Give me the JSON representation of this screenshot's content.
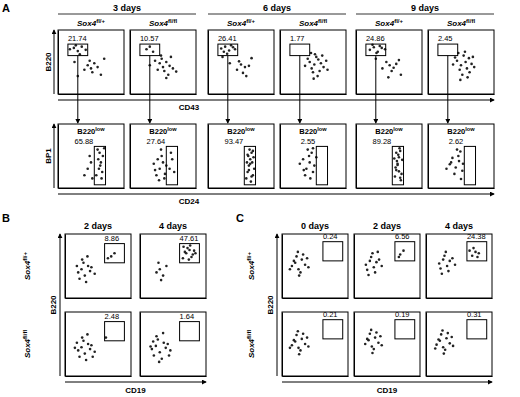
{
  "sections": [
    {
      "letter": "A",
      "headers": [
        "3 days",
        "6 days",
        "9 days"
      ],
      "column_labels": [
        "Sox4fl/+",
        "Sox4fl/fl",
        "Sox4fl/+",
        "Sox4fl/fl",
        "Sox4fl/+",
        "Sox4fl/fl"
      ],
      "y_labels": [
        "B220",
        "BP1"
      ],
      "x_labels": [
        "CD43",
        "CD24"
      ]
    },
    {
      "letter": "B",
      "headers": [
        "2 days",
        "4 days"
      ],
      "row_labels": [
        "Sox4fl/+",
        "Sox4fl/fl"
      ],
      "y_label": "B220",
      "x_label": "CD19"
    },
    {
      "letter": "C",
      "headers": [
        "0 days",
        "2 days",
        "4 days"
      ],
      "row_labels": [
        "Sox4fl/+",
        "Sox4fl/fl"
      ],
      "y_label": "B220",
      "x_label": "CD19"
    }
  ],
  "chart_data": [
    {
      "type": "scatter",
      "xlim": [
        0,
        100
      ],
      "ylim": [
        0,
        100
      ],
      "tick_labels": false,
      "color": "#222222",
      "marker": "dot",
      "x": [
        18,
        24,
        30,
        36,
        27,
        42,
        33,
        45,
        50,
        55,
        48,
        60,
        40,
        52,
        30,
        65,
        70,
        25
      ],
      "y": [
        70,
        72,
        67,
        74,
        76,
        69,
        62,
        45,
        40,
        48,
        52,
        42,
        38,
        34,
        28,
        30,
        55,
        50
      ],
      "gate": {
        "x": [
          15,
          45
        ],
        "y": [
          60,
          78
        ],
        "value": 21.74
      }
    },
    {
      "type": "scatter",
      "xlim": [
        0,
        100
      ],
      "ylim": [
        0,
        100
      ],
      "tick_labels": false,
      "color": "#222222",
      "marker": "dot",
      "x": [
        25,
        35,
        30,
        45,
        50,
        55,
        48,
        60,
        42,
        52,
        58,
        65,
        38,
        70,
        62,
        30,
        47,
        55
      ],
      "y": [
        70,
        66,
        74,
        48,
        42,
        50,
        55,
        44,
        38,
        36,
        30,
        40,
        52,
        35,
        58,
        45,
        60,
        25
      ],
      "gate": {
        "x": [
          15,
          45
        ],
        "y": [
          60,
          78
        ],
        "value": 10.57
      }
    },
    {
      "type": "scatter",
      "xlim": [
        0,
        100
      ],
      "ylim": [
        0,
        100
      ],
      "tick_labels": false,
      "color": "#222222",
      "marker": "dot",
      "x": [
        20,
        26,
        32,
        38,
        24,
        35,
        29,
        41,
        50,
        56,
        47,
        62,
        44,
        53,
        66,
        33,
        58,
        22
      ],
      "y": [
        71,
        74,
        68,
        73,
        66,
        76,
        63,
        70,
        46,
        42,
        51,
        44,
        38,
        33,
        56,
        48,
        28,
        58
      ],
      "gate": {
        "x": [
          15,
          45
        ],
        "y": [
          60,
          78
        ],
        "value": 26.41
      }
    },
    {
      "type": "scatter",
      "xlim": [
        0,
        100
      ],
      "ylim": [
        0,
        100
      ],
      "tick_labels": false,
      "color": "#222222",
      "marker": "dot",
      "x": [
        45,
        52,
        58,
        48,
        62,
        55,
        50,
        66,
        42,
        60,
        70,
        53,
        57,
        47,
        64,
        38,
        72,
        51
      ],
      "y": [
        50,
        46,
        54,
        40,
        48,
        58,
        34,
        42,
        55,
        36,
        52,
        62,
        28,
        64,
        60,
        44,
        38,
        24
      ],
      "gate": {
        "x": [
          15,
          45
        ],
        "y": [
          60,
          78
        ],
        "value": 1.77
      }
    },
    {
      "type": "scatter",
      "xlim": [
        0,
        100
      ],
      "ylim": [
        0,
        100
      ],
      "tick_labels": false,
      "color": "#222222",
      "marker": "dot",
      "x": [
        21,
        27,
        33,
        39,
        25,
        31,
        36,
        44,
        51,
        57,
        46,
        61,
        54,
        65,
        40,
        30,
        68,
        49
      ],
      "y": [
        69,
        73,
        66,
        72,
        77,
        64,
        75,
        70,
        45,
        41,
        50,
        47,
        36,
        53,
        40,
        55,
        30,
        26
      ],
      "gate": {
        "x": [
          15,
          45
        ],
        "y": [
          60,
          78
        ],
        "value": 24.86
      }
    },
    {
      "type": "scatter",
      "xlim": [
        0,
        100
      ],
      "ylim": [
        0,
        100
      ],
      "tick_labels": false,
      "color": "#222222",
      "marker": "dot",
      "x": [
        44,
        50,
        57,
        62,
        48,
        54,
        66,
        59,
        41,
        70,
        52,
        46,
        63,
        56,
        68,
        38,
        60,
        49
      ],
      "y": [
        52,
        45,
        50,
        56,
        38,
        60,
        47,
        40,
        57,
        42,
        30,
        64,
        34,
        66,
        58,
        46,
        26,
        22
      ],
      "gate": {
        "x": [
          15,
          45
        ],
        "y": [
          60,
          78
        ],
        "value": 2.45
      }
    },
    {
      "type": "scatter",
      "xlim": [
        0,
        100
      ],
      "ylim": [
        0,
        100
      ],
      "tick_labels": false,
      "color": "#222222",
      "marker": "dot",
      "x": [
        58,
        62,
        65,
        68,
        60,
        64,
        67,
        61,
        63,
        66,
        45,
        50,
        40,
        48,
        52,
        70
      ],
      "y": [
        20,
        30,
        40,
        50,
        60,
        35,
        25,
        45,
        55,
        15,
        30,
        40,
        20,
        50,
        15,
        62
      ],
      "gate": {
        "x": [
          55,
          72
        ],
        "y": [
          5,
          65
        ],
        "value": 65.88
      },
      "annotation": "B220low"
    },
    {
      "type": "scatter",
      "xlim": [
        0,
        100
      ],
      "ylim": [
        0,
        100
      ],
      "tick_labels": false,
      "color": "#222222",
      "marker": "dot",
      "x": [
        60,
        64,
        67,
        62,
        45,
        50,
        40,
        48,
        52,
        42,
        55,
        38,
        47,
        53,
        36,
        44
      ],
      "y": [
        30,
        45,
        25,
        55,
        30,
        40,
        20,
        50,
        15,
        45,
        35,
        28,
        60,
        22,
        38,
        12
      ],
      "gate": {
        "x": [
          55,
          72
        ],
        "y": [
          5,
          65
        ],
        "value": 27.64
      },
      "annotation": "B220low"
    },
    {
      "type": "scatter",
      "xlim": [
        0,
        100
      ],
      "ylim": [
        0,
        100
      ],
      "tick_labels": false,
      "color": "#222222",
      "marker": "dot",
      "x": [
        58,
        60,
        62,
        64,
        66,
        68,
        70,
        59,
        61,
        63,
        65,
        67,
        69,
        62,
        64,
        66,
        60,
        68
      ],
      "y": [
        15,
        25,
        35,
        45,
        55,
        20,
        30,
        40,
        50,
        60,
        10,
        40,
        48,
        28,
        38,
        18,
        52,
        58
      ],
      "gate": {
        "x": [
          55,
          72
        ],
        "y": [
          5,
          65
        ],
        "value": 93.47
      },
      "annotation": "B220low"
    },
    {
      "type": "scatter",
      "xlim": [
        0,
        100
      ],
      "ylim": [
        0,
        100
      ],
      "tick_labels": false,
      "color": "#222222",
      "marker": "dot",
      "x": [
        40,
        45,
        50,
        35,
        48,
        52,
        42,
        38,
        46,
        30,
        55,
        44,
        36,
        50
      ],
      "y": [
        30,
        40,
        25,
        45,
        55,
        35,
        60,
        20,
        15,
        38,
        48,
        50,
        28,
        62
      ],
      "gate": {
        "x": [
          55,
          72
        ],
        "y": [
          5,
          65
        ],
        "value": 2.55
      },
      "annotation": "B220low"
    },
    {
      "type": "scatter",
      "xlim": [
        0,
        100
      ],
      "ylim": [
        0,
        100
      ],
      "tick_labels": false,
      "color": "#222222",
      "marker": "dot",
      "x": [
        59,
        61,
        63,
        65,
        67,
        69,
        60,
        62,
        64,
        66,
        68,
        70,
        61,
        65,
        63,
        67,
        58
      ],
      "y": [
        18,
        28,
        38,
        48,
        58,
        22,
        32,
        42,
        52,
        62,
        12,
        44,
        55,
        26,
        36,
        16,
        46
      ],
      "gate": {
        "x": [
          55,
          72
        ],
        "y": [
          5,
          65
        ],
        "value": 89.28
      },
      "annotation": "B220low"
    },
    {
      "type": "scatter",
      "xlim": [
        0,
        100
      ],
      "ylim": [
        0,
        100
      ],
      "tick_labels": false,
      "color": "#222222",
      "marker": "dot",
      "x": [
        42,
        47,
        52,
        37,
        49,
        33,
        44,
        40,
        50,
        35,
        46,
        28,
        53
      ],
      "y": [
        32,
        42,
        27,
        47,
        57,
        37,
        60,
        22,
        14,
        40,
        50,
        30,
        38
      ],
      "gate": {
        "x": [
          55,
          72
        ],
        "y": [
          5,
          65
        ],
        "value": 2.62
      },
      "annotation": "B220low"
    },
    {
      "type": "scatter",
      "xlim": [
        0,
        100
      ],
      "ylim": [
        0,
        100
      ],
      "tick_labels": false,
      "color": "#222222",
      "marker": "dot",
      "x": [
        20,
        25,
        30,
        35,
        28,
        22,
        38,
        32,
        26,
        40,
        45,
        70,
        75,
        65,
        34,
        18
      ],
      "y": [
        40,
        45,
        35,
        50,
        55,
        30,
        42,
        25,
        60,
        48,
        38,
        65,
        70,
        62,
        65,
        50
      ],
      "gate": {
        "x": [
          60,
          90
        ],
        "y": [
          55,
          85
        ],
        "value": 8.86
      }
    },
    {
      "type": "scatter",
      "xlim": [
        0,
        100
      ],
      "ylim": [
        0,
        100
      ],
      "tick_labels": false,
      "color": "#222222",
      "marker": "dot",
      "x": [
        65,
        70,
        75,
        80,
        72,
        68,
        78,
        74,
        82,
        25,
        30,
        35,
        28,
        40,
        66,
        76,
        84,
        32
      ],
      "y": [
        62,
        70,
        75,
        68,
        78,
        72,
        64,
        60,
        74,
        40,
        45,
        35,
        55,
        50,
        80,
        82,
        70,
        28
      ],
      "gate": {
        "x": [
          60,
          90
        ],
        "y": [
          55,
          85
        ],
        "value": 47.61
      }
    },
    {
      "type": "scatter",
      "xlim": [
        0,
        100
      ],
      "ylim": [
        0,
        100
      ],
      "tick_labels": false,
      "color": "#222222",
      "marker": "dot",
      "x": [
        20,
        25,
        30,
        35,
        28,
        22,
        38,
        32,
        26,
        40,
        45,
        15,
        34,
        18,
        42,
        62
      ],
      "y": [
        40,
        45,
        35,
        50,
        55,
        30,
        42,
        25,
        60,
        48,
        38,
        44,
        65,
        52,
        30,
        60
      ],
      "gate": {
        "x": [
          60,
          90
        ],
        "y": [
          55,
          85
        ],
        "value": 2.48
      }
    },
    {
      "type": "scatter",
      "xlim": [
        0,
        100
      ],
      "ylim": [
        0,
        100
      ],
      "tick_labels": false,
      "color": "#222222",
      "marker": "dot",
      "x": [
        18,
        24,
        30,
        36,
        27,
        21,
        39,
        33,
        25,
        42,
        46,
        16,
        35,
        20,
        44,
        29
      ],
      "y": [
        42,
        47,
        37,
        52,
        57,
        32,
        44,
        27,
        62,
        50,
        40,
        46,
        67,
        54,
        32,
        22
      ],
      "gate": {
        "x": [
          60,
          90
        ],
        "y": [
          55,
          85
        ],
        "value": 1.64
      }
    },
    {
      "type": "scatter",
      "xlim": [
        0,
        100
      ],
      "ylim": [
        0,
        100
      ],
      "tick_labels": false,
      "color": "#222222",
      "marker": "dot",
      "x": [
        15,
        20,
        25,
        30,
        22,
        28,
        35,
        18,
        32,
        40,
        26,
        24,
        38,
        12
      ],
      "y": [
        50,
        55,
        45,
        60,
        65,
        40,
        52,
        58,
        68,
        48,
        35,
        72,
        62,
        45
      ],
      "gate": {
        "x": [
          62,
          92
        ],
        "y": [
          58,
          88
        ],
        "value": 0.24
      }
    },
    {
      "type": "scatter",
      "xlim": [
        0,
        100
      ],
      "ylim": [
        0,
        100
      ],
      "tick_labels": false,
      "color": "#222222",
      "marker": "dot",
      "x": [
        18,
        24,
        30,
        26,
        34,
        20,
        38,
        28,
        42,
        32,
        70,
        75,
        68,
        36,
        22
      ],
      "y": [
        52,
        58,
        48,
        64,
        56,
        44,
        60,
        70,
        50,
        40,
        68,
        74,
        64,
        72,
        36
      ],
      "gate": {
        "x": [
          62,
          92
        ],
        "y": [
          58,
          88
        ],
        "value": 6.56
      }
    },
    {
      "type": "scatter",
      "xlim": [
        0,
        100
      ],
      "ylim": [
        0,
        100
      ],
      "tick_labels": false,
      "color": "#222222",
      "marker": "dot",
      "x": [
        20,
        26,
        32,
        28,
        36,
        22,
        40,
        30,
        44,
        70,
        75,
        80,
        72,
        78,
        66,
        34,
        24
      ],
      "y": [
        54,
        60,
        50,
        66,
        58,
        46,
        62,
        72,
        52,
        66,
        72,
        70,
        78,
        64,
        74,
        42,
        38
      ],
      "gate": {
        "x": [
          62,
          92
        ],
        "y": [
          58,
          88
        ],
        "value": 24.38
      }
    },
    {
      "type": "scatter",
      "xlim": [
        0,
        100
      ],
      "ylim": [
        0,
        100
      ],
      "tick_labels": false,
      "color": "#222222",
      "marker": "dot",
      "x": [
        15,
        20,
        25,
        30,
        22,
        28,
        35,
        18,
        32,
        40,
        26,
        24,
        38,
        12
      ],
      "y": [
        48,
        54,
        44,
        58,
        64,
        40,
        50,
        56,
        66,
        46,
        34,
        70,
        60,
        44
      ],
      "gate": {
        "x": [
          62,
          92
        ],
        "y": [
          58,
          88
        ],
        "value": 0.21
      }
    },
    {
      "type": "scatter",
      "xlim": [
        0,
        100
      ],
      "ylim": [
        0,
        100
      ],
      "tick_labels": false,
      "color": "#222222",
      "marker": "dot",
      "x": [
        17,
        22,
        27,
        32,
        24,
        30,
        37,
        20,
        34,
        42,
        28,
        26,
        40
      ],
      "y": [
        50,
        56,
        46,
        60,
        66,
        42,
        52,
        58,
        68,
        48,
        36,
        72,
        62
      ],
      "gate": {
        "x": [
          62,
          92
        ],
        "y": [
          58,
          88
        ],
        "value": 0.19
      }
    },
    {
      "type": "scatter",
      "xlim": [
        0,
        100
      ],
      "ylim": [
        0,
        100
      ],
      "tick_labels": false,
      "color": "#222222",
      "marker": "dot",
      "x": [
        16,
        21,
        26,
        31,
        23,
        29,
        36,
        19,
        33,
        41,
        27,
        25,
        39,
        14
      ],
      "y": [
        49,
        55,
        45,
        59,
        65,
        41,
        51,
        57,
        67,
        47,
        35,
        71,
        61,
        43
      ],
      "gate": {
        "x": [
          62,
          92
        ],
        "y": [
          58,
          88
        ],
        "value": 0.31
      }
    }
  ]
}
